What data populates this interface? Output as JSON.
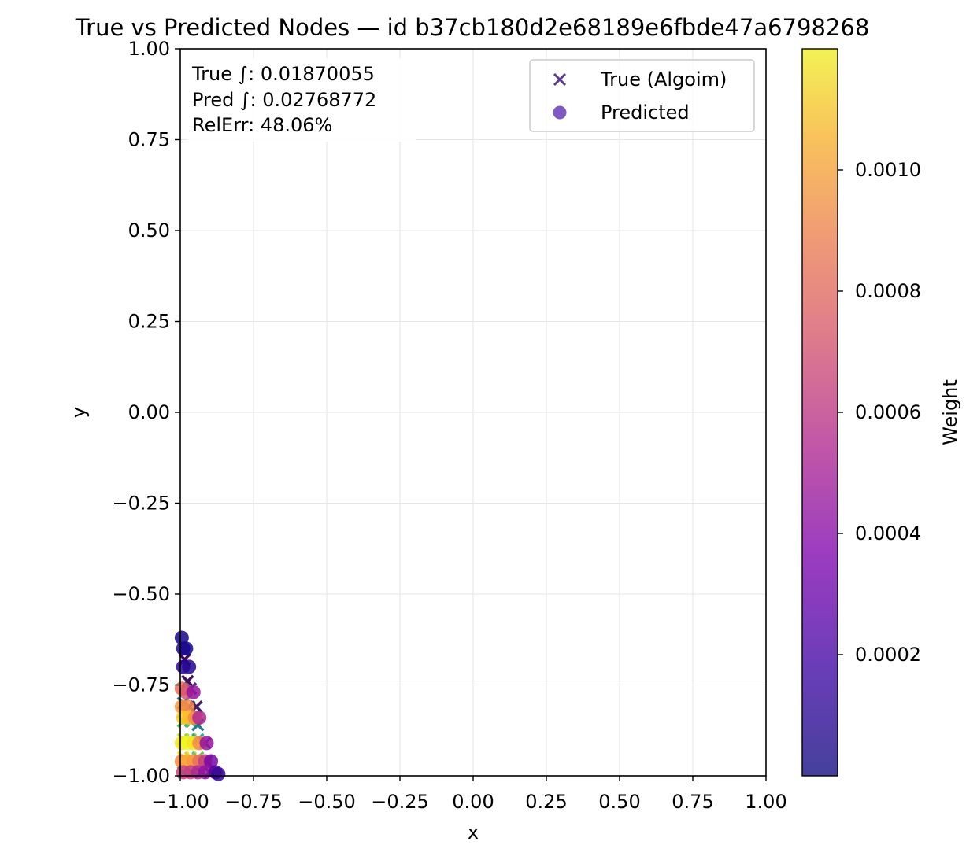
{
  "chart_data": {
    "type": "scatter",
    "title": "True vs Predicted Nodes — id b37cb180d2e68189e6fbde47a6798268",
    "xlabel": "x",
    "ylabel": "y",
    "xlim": [
      -1.0,
      1.0
    ],
    "ylim": [
      -1.0,
      1.0
    ],
    "x_ticks": [
      "−1.00",
      "−0.75",
      "−0.50",
      "−0.25",
      "0.00",
      "0.25",
      "0.50",
      "0.75",
      "1.00"
    ],
    "y_ticks": [
      "1.00",
      "0.75",
      "0.50",
      "0.25",
      "0.00",
      "−0.25",
      "−0.50",
      "−0.75",
      "−1.00"
    ],
    "grid": true,
    "legend_position": "top-right",
    "legend": [
      "True (Algoim)",
      "Predicted"
    ],
    "annotation": [
      "True ∫: 0.01870055",
      "Pred ∫: 0.02768772",
      "RelErr: 48.06%"
    ],
    "colorbar": {
      "label": "Weight",
      "colormap": "plasma",
      "range": [
        0.0,
        0.0012
      ],
      "ticks": [
        "0.0002",
        "0.0004",
        "0.0006",
        "0.0008",
        "0.0010"
      ]
    },
    "series": [
      {
        "name": "True (Algoim)",
        "marker": "x",
        "colormap": "viridis",
        "points": [
          {
            "x": -0.985,
            "y": -0.68,
            "w": 2e-05
          },
          {
            "x": -0.975,
            "y": -0.74,
            "w": 5e-05
          },
          {
            "x": -0.965,
            "y": -0.76,
            "w": 0.0002
          },
          {
            "x": -0.99,
            "y": -0.8,
            "w": 0.0004
          },
          {
            "x": -0.97,
            "y": -0.81,
            "w": 0.0003
          },
          {
            "x": -0.945,
            "y": -0.81,
            "w": 0.0001
          },
          {
            "x": -0.99,
            "y": -0.85,
            "w": 0.0009
          },
          {
            "x": -0.965,
            "y": -0.85,
            "w": 0.0008
          },
          {
            "x": -0.94,
            "y": -0.86,
            "w": 0.0005
          },
          {
            "x": -0.99,
            "y": -0.9,
            "w": 0.0011
          },
          {
            "x": -0.965,
            "y": -0.9,
            "w": 0.001
          },
          {
            "x": -0.94,
            "y": -0.9,
            "w": 0.0007
          },
          {
            "x": -0.915,
            "y": -0.91,
            "w": 0.0003
          },
          {
            "x": -0.99,
            "y": -0.95,
            "w": 0.0012
          },
          {
            "x": -0.965,
            "y": -0.95,
            "w": 0.0011
          },
          {
            "x": -0.94,
            "y": -0.95,
            "w": 0.0009
          },
          {
            "x": -0.91,
            "y": -0.96,
            "w": 0.0005
          },
          {
            "x": -0.99,
            "y": -0.99,
            "w": 0.0008
          },
          {
            "x": -0.96,
            "y": -0.99,
            "w": 0.0006
          },
          {
            "x": -0.93,
            "y": -0.99,
            "w": 0.0004
          },
          {
            "x": -0.9,
            "y": -0.99,
            "w": 0.0002
          }
        ]
      },
      {
        "name": "Predicted",
        "marker": "o",
        "colormap": "plasma",
        "points": [
          {
            "x": -0.995,
            "y": -0.62,
            "w": 2e-05
          },
          {
            "x": -0.99,
            "y": -0.65,
            "w": 4e-05
          },
          {
            "x": -0.98,
            "y": -0.65,
            "w": 3e-05
          },
          {
            "x": -0.99,
            "y": -0.7,
            "w": 8e-05
          },
          {
            "x": -0.97,
            "y": -0.7,
            "w": 6e-05
          },
          {
            "x": -0.995,
            "y": -0.76,
            "w": 0.0008
          },
          {
            "x": -0.98,
            "y": -0.77,
            "w": 0.0007
          },
          {
            "x": -0.955,
            "y": -0.77,
            "w": 0.0004
          },
          {
            "x": -0.995,
            "y": -0.81,
            "w": 0.00095
          },
          {
            "x": -0.975,
            "y": -0.81,
            "w": 0.0009
          },
          {
            "x": -0.99,
            "y": -0.84,
            "w": 0.0011
          },
          {
            "x": -0.97,
            "y": -0.84,
            "w": 0.00105
          },
          {
            "x": -0.95,
            "y": -0.84,
            "w": 0.0009
          },
          {
            "x": -0.935,
            "y": -0.84,
            "w": 0.0005
          },
          {
            "x": -0.995,
            "y": -0.91,
            "w": 0.00115
          },
          {
            "x": -0.975,
            "y": -0.91,
            "w": 0.0012
          },
          {
            "x": -0.955,
            "y": -0.91,
            "w": 0.00115
          },
          {
            "x": -0.935,
            "y": -0.91,
            "w": 0.0009
          },
          {
            "x": -0.91,
            "y": -0.91,
            "w": 0.0004
          },
          {
            "x": -0.995,
            "y": -0.96,
            "w": 0.0009
          },
          {
            "x": -0.975,
            "y": -0.96,
            "w": 0.001
          },
          {
            "x": -0.955,
            "y": -0.96,
            "w": 0.00095
          },
          {
            "x": -0.935,
            "y": -0.96,
            "w": 0.0008
          },
          {
            "x": -0.915,
            "y": -0.96,
            "w": 0.0006
          },
          {
            "x": -0.895,
            "y": -0.96,
            "w": 0.0003
          },
          {
            "x": -0.99,
            "y": -0.99,
            "w": 0.0006
          },
          {
            "x": -0.965,
            "y": -0.99,
            "w": 0.0006
          },
          {
            "x": -0.94,
            "y": -0.99,
            "w": 0.0005
          },
          {
            "x": -0.915,
            "y": -0.99,
            "w": 0.0004
          },
          {
            "x": -0.88,
            "y": -0.99,
            "w": 0.0002
          },
          {
            "x": -0.87,
            "y": -0.995,
            "w": 0.0001
          }
        ]
      }
    ]
  }
}
